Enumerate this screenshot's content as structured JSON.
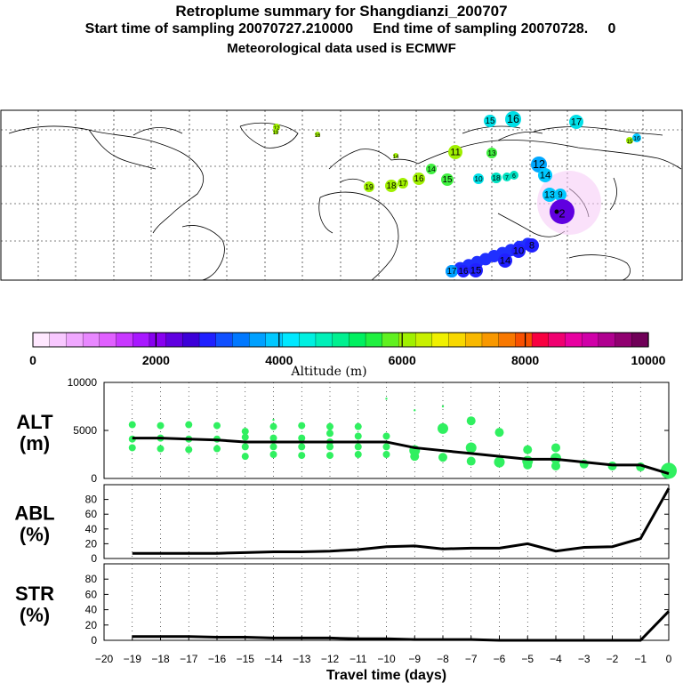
{
  "header": {
    "title": "Retroplume summary for Shangdianzi_200707",
    "subtitle": "Start time of sampling 20070727.210000     End time of sampling 20070728.     0",
    "met_line": "Meteorological data used is ECMWF"
  },
  "colorbar": {
    "label": "Altitude (m)",
    "ticks": [
      "0",
      "2000",
      "4000",
      "6000",
      "8000",
      "10000"
    ],
    "colors": [
      "#ffe8ff",
      "#f8c8ff",
      "#f0a8ff",
      "#e888ff",
      "#e060ff",
      "#c838ff",
      "#a818ff",
      "#8800f0",
      "#6000e0",
      "#3c00d8",
      "#2020ff",
      "#1050ff",
      "#0078ff",
      "#00a0ff",
      "#00c8ff",
      "#00e8ff",
      "#00f0e0",
      "#00f0b8",
      "#00f090",
      "#00f060",
      "#20f040",
      "#60f020",
      "#a0f000",
      "#c8f000",
      "#f0f000",
      "#f8d800",
      "#f8b800",
      "#f89800",
      "#f87800",
      "#f85000",
      "#f80040",
      "#f00070",
      "#e800a0",
      "#d000a8",
      "#b00090",
      "#900070",
      "#700058"
    ]
  },
  "map_points": [
    {
      "label": "15",
      "color": "#00e0e8"
    },
    {
      "label": "16",
      "color": "#00e0e8"
    },
    {
      "label": "17",
      "color": "#00e0e8"
    },
    {
      "label": "15",
      "color": "#a0f000"
    },
    {
      "label": "16",
      "color": "#a0f000"
    },
    {
      "label": "12",
      "color": "#a0f000"
    },
    {
      "label": "11",
      "color": "#a0f000"
    },
    {
      "label": "13",
      "color": "#40f040"
    },
    {
      "label": "14",
      "color": "#40f040"
    },
    {
      "label": "15",
      "color": "#40f040"
    },
    {
      "label": "16",
      "color": "#a0f000"
    },
    {
      "label": "17",
      "color": "#a0f000"
    },
    {
      "label": "18",
      "color": "#a0f000"
    },
    {
      "label": "19",
      "color": "#a0f000"
    },
    {
      "label": "10",
      "color": "#00e0e8"
    },
    {
      "label": "12",
      "color": "#00a8ff"
    },
    {
      "label": "14",
      "color": "#00c8ff"
    },
    {
      "label": "13",
      "color": "#00c8ff"
    },
    {
      "label": "9",
      "color": "#00c8ff"
    },
    {
      "label": "18",
      "color": "#00e0c0"
    },
    {
      "label": "7",
      "color": "#00e0c0"
    },
    {
      "label": "6",
      "color": "#00e0c0"
    },
    {
      "label": "2",
      "color": "#6000e0"
    },
    {
      "label": "17",
      "color": "#00a0ff"
    },
    {
      "label": "16",
      "color": "#2020ff"
    },
    {
      "label": "15",
      "color": "#2020ff"
    },
    {
      "label": "14",
      "color": "#2020ff"
    },
    {
      "label": "10",
      "color": "#2020ff"
    },
    {
      "label": "8",
      "color": "#2020ff"
    },
    {
      "label": "16",
      "color": "#00c8ff"
    },
    {
      "label": "14",
      "color": "#a0f000"
    },
    {
      "label": "19",
      "color": "#a0f000"
    }
  ],
  "chart_data": [
    {
      "type": "line",
      "panel": "ALT",
      "ylabel": "ALT\n(m)",
      "ylabel_lines": [
        "ALT",
        "(m)"
      ],
      "ylim": [
        0,
        10000
      ],
      "yticks": [
        "0",
        "5000",
        "10000"
      ],
      "x": [
        -19,
        -18,
        -17,
        -16,
        -15,
        -14,
        -13,
        -12,
        -11,
        -10,
        -9,
        -8,
        -7,
        -6,
        -5,
        -4,
        -3,
        -2,
        -1,
        0
      ],
      "series": [
        {
          "name": "mean altitude",
          "values": [
            4200,
            4200,
            4100,
            4000,
            3800,
            3800,
            3800,
            3800,
            3800,
            3800,
            3200,
            2900,
            2600,
            2300,
            2000,
            2000,
            1700,
            1400,
            1400,
            500
          ]
        }
      ],
      "clusters": [
        {
          "x": -19,
          "values": [
            5600,
            4100,
            3200
          ]
        },
        {
          "x": -18,
          "values": [
            5500,
            4200,
            3100
          ]
        },
        {
          "x": -17,
          "values": [
            5600,
            4100,
            3000
          ]
        },
        {
          "x": -16,
          "values": [
            5500,
            4100,
            3100
          ]
        },
        {
          "x": -15,
          "values": [
            4900,
            4300,
            3300,
            2300
          ]
        },
        {
          "x": -14,
          "values": [
            6100,
            5400,
            4200,
            3300,
            2500
          ]
        },
        {
          "x": -13,
          "values": [
            5500,
            4200,
            3300,
            2400
          ]
        },
        {
          "x": -12,
          "values": [
            5400,
            4700,
            3800,
            3300,
            2400
          ]
        },
        {
          "x": -11,
          "values": [
            5400,
            4400,
            3300,
            2500
          ]
        },
        {
          "x": -10,
          "values": [
            8300,
            4400,
            3300,
            2500
          ]
        },
        {
          "x": -9,
          "values": [
            7100,
            2900,
            2300
          ]
        },
        {
          "x": -8,
          "values": [
            7500,
            5200,
            2200
          ]
        },
        {
          "x": -7,
          "values": [
            6000,
            3200,
            1800
          ]
        },
        {
          "x": -6,
          "values": [
            4800,
            1700
          ]
        },
        {
          "x": -5,
          "values": [
            3000,
            1800,
            1400
          ]
        },
        {
          "x": -4,
          "values": [
            3200,
            2100,
            1300
          ]
        },
        {
          "x": -3,
          "values": [
            1500
          ]
        },
        {
          "x": -2,
          "values": [
            1300
          ]
        },
        {
          "x": -1,
          "values": [
            1200
          ]
        },
        {
          "x": 0,
          "values": [
            800
          ]
        }
      ]
    },
    {
      "type": "line",
      "panel": "ABL",
      "ylabel_lines": [
        "ABL",
        "(%)"
      ],
      "ylim": [
        0,
        100
      ],
      "yticks": [
        "0",
        "20",
        "40",
        "60",
        "80"
      ],
      "x": [
        -19,
        -18,
        -17,
        -16,
        -15,
        -14,
        -13,
        -12,
        -11,
        -10,
        -9,
        -8,
        -7,
        -6,
        -5,
        -4,
        -3,
        -2,
        -1,
        0
      ],
      "series": [
        {
          "name": "ABL fraction",
          "values": [
            7,
            7,
            7,
            7,
            8,
            9,
            9,
            10,
            12,
            16,
            17,
            13,
            14,
            14,
            20,
            10,
            15,
            16,
            27,
            95
          ]
        }
      ]
    },
    {
      "type": "line",
      "panel": "STR",
      "ylabel_lines": [
        "STR",
        "(%)"
      ],
      "ylim": [
        0,
        100
      ],
      "yticks": [
        "0",
        "20",
        "40",
        "60",
        "80"
      ],
      "x": [
        -19,
        -18,
        -17,
        -16,
        -15,
        -14,
        -13,
        -12,
        -11,
        -10,
        -9,
        -8,
        -7,
        -6,
        -5,
        -4,
        -3,
        -2,
        -1,
        0
      ],
      "series": [
        {
          "name": "stratosphere fraction",
          "values": [
            5,
            5,
            5,
            4,
            4,
            3,
            3,
            3,
            2,
            2,
            1,
            1,
            1,
            0,
            0,
            0,
            0,
            0,
            0,
            38
          ]
        }
      ],
      "xlabel": "Travel time (days)",
      "xticks": [
        "-20",
        "-19",
        "-18",
        "-17",
        "-16",
        "-15",
        "-14",
        "-13",
        "-12",
        "-11",
        "-10",
        "-9",
        "-8",
        "-7",
        "-6",
        "-5",
        "-4",
        "-3",
        "-2",
        "-1",
        "0"
      ]
    }
  ]
}
